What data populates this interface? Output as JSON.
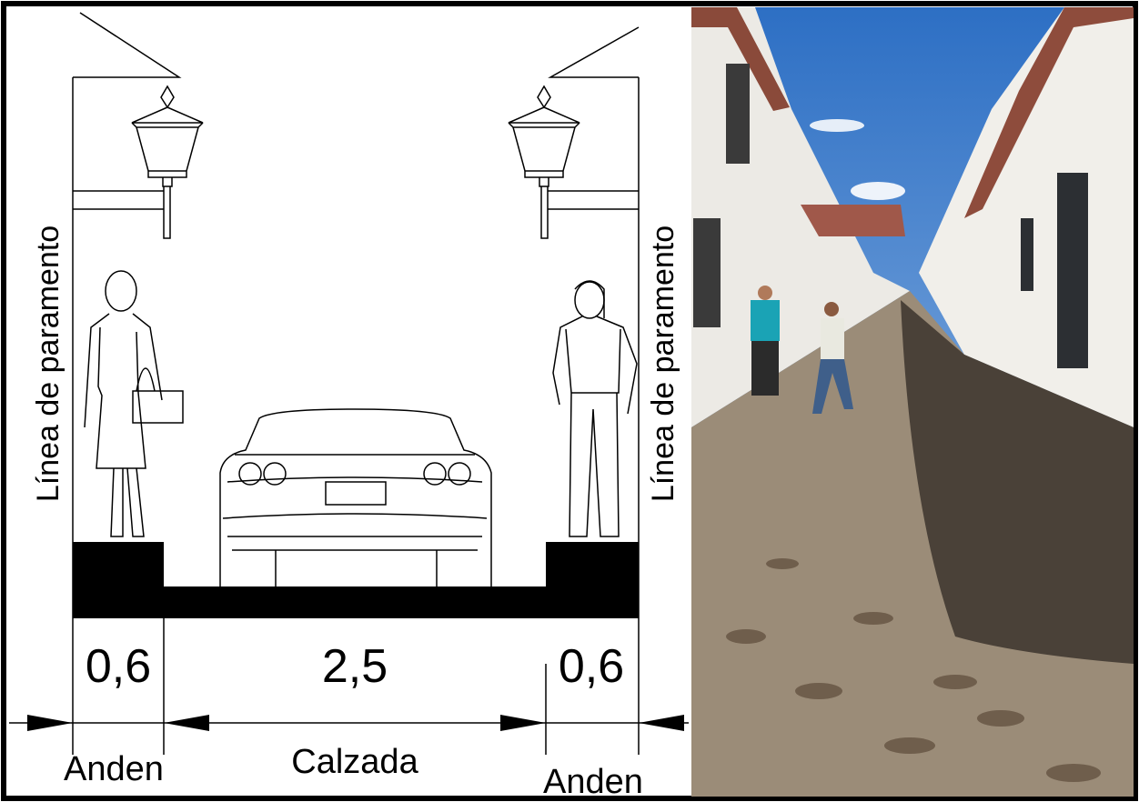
{
  "walls": {
    "left": "Línea de paramento",
    "right": "Línea de paramento"
  },
  "dimensions": [
    {
      "width": "0,6",
      "name": "Anden"
    },
    {
      "width": "2,5",
      "name": "Calzada"
    },
    {
      "width": "0,6",
      "name": "Anden"
    }
  ]
}
